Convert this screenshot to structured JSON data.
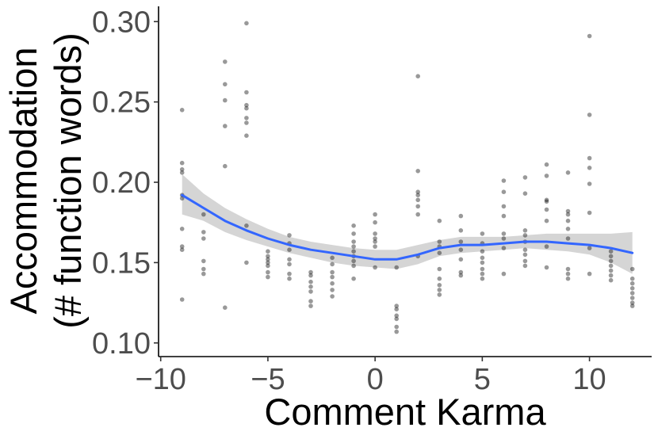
{
  "chart_data": {
    "type": "scatter",
    "title": "",
    "xlabel": "Comment Karma",
    "ylabel_lines": [
      "Accommodation",
      "(# function words)"
    ],
    "xlim": [
      -10.1,
      12.9
    ],
    "ylim": [
      0.0915,
      0.3095
    ],
    "x_ticks": [
      -10,
      -5,
      0,
      5,
      10
    ],
    "x_tick_labels": [
      "−10",
      "−5",
      "0",
      "5",
      "10"
    ],
    "y_ticks": [
      0.1,
      0.15,
      0.2,
      0.25,
      0.3
    ],
    "y_tick_labels": [
      "0.10",
      "0.15",
      "0.20",
      "0.25",
      "0.30"
    ],
    "grid": false,
    "colors": {
      "points": "#000000",
      "smooth_line": "#3366FF",
      "ribbon": "#bfbfbf"
    },
    "points": [
      [
        -9,
        0.245
      ],
      [
        -9,
        0.212
      ],
      [
        -9,
        0.208
      ],
      [
        -9,
        0.206
      ],
      [
        -9,
        0.192
      ],
      [
        -9,
        0.19
      ],
      [
        -9,
        0.171
      ],
      [
        -9,
        0.16
      ],
      [
        -9,
        0.158
      ],
      [
        -9,
        0.127
      ],
      [
        -8,
        0.18
      ],
      [
        -8,
        0.169
      ],
      [
        -8,
        0.165
      ],
      [
        -8,
        0.151
      ],
      [
        -8,
        0.146
      ],
      [
        -8,
        0.143
      ],
      [
        -7,
        0.275
      ],
      [
        -7,
        0.261
      ],
      [
        -7,
        0.251
      ],
      [
        -7,
        0.235
      ],
      [
        -7,
        0.21
      ],
      [
        -7,
        0.122
      ],
      [
        -6,
        0.299
      ],
      [
        -6,
        0.256
      ],
      [
        -6,
        0.248
      ],
      [
        -6,
        0.246
      ],
      [
        -6,
        0.24
      ],
      [
        -6,
        0.237
      ],
      [
        -6,
        0.229
      ],
      [
        -6,
        0.173
      ],
      [
        -6,
        0.15
      ],
      [
        -5,
        0.157
      ],
      [
        -5,
        0.154
      ],
      [
        -5,
        0.152
      ],
      [
        -5,
        0.15
      ],
      [
        -5,
        0.148
      ],
      [
        -5,
        0.144
      ],
      [
        -5,
        0.141
      ],
      [
        -4,
        0.167
      ],
      [
        -4,
        0.162
      ],
      [
        -4,
        0.158
      ],
      [
        -4,
        0.152
      ],
      [
        -4,
        0.149
      ],
      [
        -4,
        0.143
      ],
      [
        -4,
        0.14
      ],
      [
        -3,
        0.144
      ],
      [
        -3,
        0.142
      ],
      [
        -3,
        0.138
      ],
      [
        -3,
        0.135
      ],
      [
        -3,
        0.132
      ],
      [
        -3,
        0.126
      ],
      [
        -3,
        0.123
      ],
      [
        -2,
        0.153
      ],
      [
        -2,
        0.149
      ],
      [
        -2,
        0.144
      ],
      [
        -2,
        0.141
      ],
      [
        -2,
        0.137
      ],
      [
        -2,
        0.133
      ],
      [
        -2,
        0.129
      ],
      [
        -1,
        0.173
      ],
      [
        -1,
        0.168
      ],
      [
        -1,
        0.163
      ],
      [
        -1,
        0.16
      ],
      [
        -1,
        0.157
      ],
      [
        -1,
        0.154
      ],
      [
        -1,
        0.151
      ],
      [
        -1,
        0.148
      ],
      [
        -1,
        0.14
      ],
      [
        0,
        0.18
      ],
      [
        0,
        0.175
      ],
      [
        0,
        0.168
      ],
      [
        0,
        0.165
      ],
      [
        0,
        0.163
      ],
      [
        0,
        0.16
      ],
      [
        0,
        0.147
      ],
      [
        1,
        0.147
      ],
      [
        1,
        0.123
      ],
      [
        1,
        0.121
      ],
      [
        1,
        0.117
      ],
      [
        1,
        0.115
      ],
      [
        1,
        0.11
      ],
      [
        1,
        0.107
      ],
      [
        2,
        0.266
      ],
      [
        2,
        0.207
      ],
      [
        2,
        0.194
      ],
      [
        2,
        0.192
      ],
      [
        2,
        0.189
      ],
      [
        2,
        0.185
      ],
      [
        2,
        0.18
      ],
      [
        2,
        0.154
      ],
      [
        3,
        0.176
      ],
      [
        3,
        0.163
      ],
      [
        3,
        0.16
      ],
      [
        3,
        0.156
      ],
      [
        3,
        0.146
      ],
      [
        3,
        0.14
      ],
      [
        3,
        0.136
      ],
      [
        3,
        0.133
      ],
      [
        3,
        0.13
      ],
      [
        4,
        0.179
      ],
      [
        4,
        0.17
      ],
      [
        4,
        0.163
      ],
      [
        4,
        0.158
      ],
      [
        4,
        0.152
      ],
      [
        4,
        0.144
      ],
      [
        4,
        0.142
      ],
      [
        5,
        0.168
      ],
      [
        5,
        0.162
      ],
      [
        5,
        0.157
      ],
      [
        5,
        0.153
      ],
      [
        5,
        0.15
      ],
      [
        5,
        0.146
      ],
      [
        5,
        0.143
      ],
      [
        5,
        0.14
      ],
      [
        6,
        0.201
      ],
      [
        6,
        0.194
      ],
      [
        6,
        0.185
      ],
      [
        6,
        0.179
      ],
      [
        6,
        0.168
      ],
      [
        6,
        0.165
      ],
      [
        6,
        0.159
      ],
      [
        6,
        0.143
      ],
      [
        7,
        0.203
      ],
      [
        7,
        0.193
      ],
      [
        7,
        0.17
      ],
      [
        7,
        0.167
      ],
      [
        7,
        0.163
      ],
      [
        7,
        0.158
      ],
      [
        7,
        0.155
      ],
      [
        7,
        0.151
      ],
      [
        7,
        0.148
      ],
      [
        8,
        0.211
      ],
      [
        8,
        0.204
      ],
      [
        8,
        0.189
      ],
      [
        8,
        0.188
      ],
      [
        8,
        0.183
      ],
      [
        8,
        0.176
      ],
      [
        8,
        0.16
      ],
      [
        8,
        0.147
      ],
      [
        9,
        0.206
      ],
      [
        9,
        0.182
      ],
      [
        9,
        0.18
      ],
      [
        9,
        0.176
      ],
      [
        9,
        0.171
      ],
      [
        9,
        0.165
      ],
      [
        9,
        0.146
      ],
      [
        9,
        0.143
      ],
      [
        9,
        0.14
      ],
      [
        10,
        0.291
      ],
      [
        10,
        0.242
      ],
      [
        10,
        0.215
      ],
      [
        10,
        0.209
      ],
      [
        10,
        0.199
      ],
      [
        10,
        0.181
      ],
      [
        10,
        0.159
      ],
      [
        10,
        0.143
      ],
      [
        11,
        0.157
      ],
      [
        11,
        0.154
      ],
      [
        11,
        0.151
      ],
      [
        11,
        0.148
      ],
      [
        11,
        0.145
      ],
      [
        11,
        0.142
      ],
      [
        11,
        0.139
      ],
      [
        12,
        0.146
      ],
      [
        12,
        0.14
      ],
      [
        12,
        0.137
      ],
      [
        12,
        0.134
      ],
      [
        12,
        0.131
      ],
      [
        12,
        0.128
      ],
      [
        12,
        0.125
      ],
      [
        12,
        0.123
      ]
    ],
    "smooth_line": {
      "x": [
        -9,
        -8,
        -7,
        -6,
        -5,
        -4,
        -3,
        -2,
        -1,
        0,
        1,
        2,
        3,
        4,
        5,
        6,
        7,
        8,
        9,
        10,
        11,
        12
      ],
      "y": [
        0.192,
        0.184,
        0.176,
        0.17,
        0.165,
        0.161,
        0.158,
        0.156,
        0.154,
        0.152,
        0.152,
        0.155,
        0.159,
        0.161,
        0.161,
        0.162,
        0.163,
        0.163,
        0.162,
        0.161,
        0.159,
        0.156
      ],
      "lower": [
        0.18,
        0.176,
        0.169,
        0.164,
        0.16,
        0.156,
        0.153,
        0.15,
        0.148,
        0.147,
        0.146,
        0.149,
        0.154,
        0.156,
        0.157,
        0.158,
        0.159,
        0.158,
        0.157,
        0.155,
        0.15,
        0.143
      ],
      "upper": [
        0.205,
        0.193,
        0.184,
        0.177,
        0.171,
        0.166,
        0.163,
        0.161,
        0.159,
        0.158,
        0.158,
        0.161,
        0.164,
        0.166,
        0.166,
        0.166,
        0.167,
        0.168,
        0.168,
        0.168,
        0.168,
        0.169
      ]
    }
  }
}
